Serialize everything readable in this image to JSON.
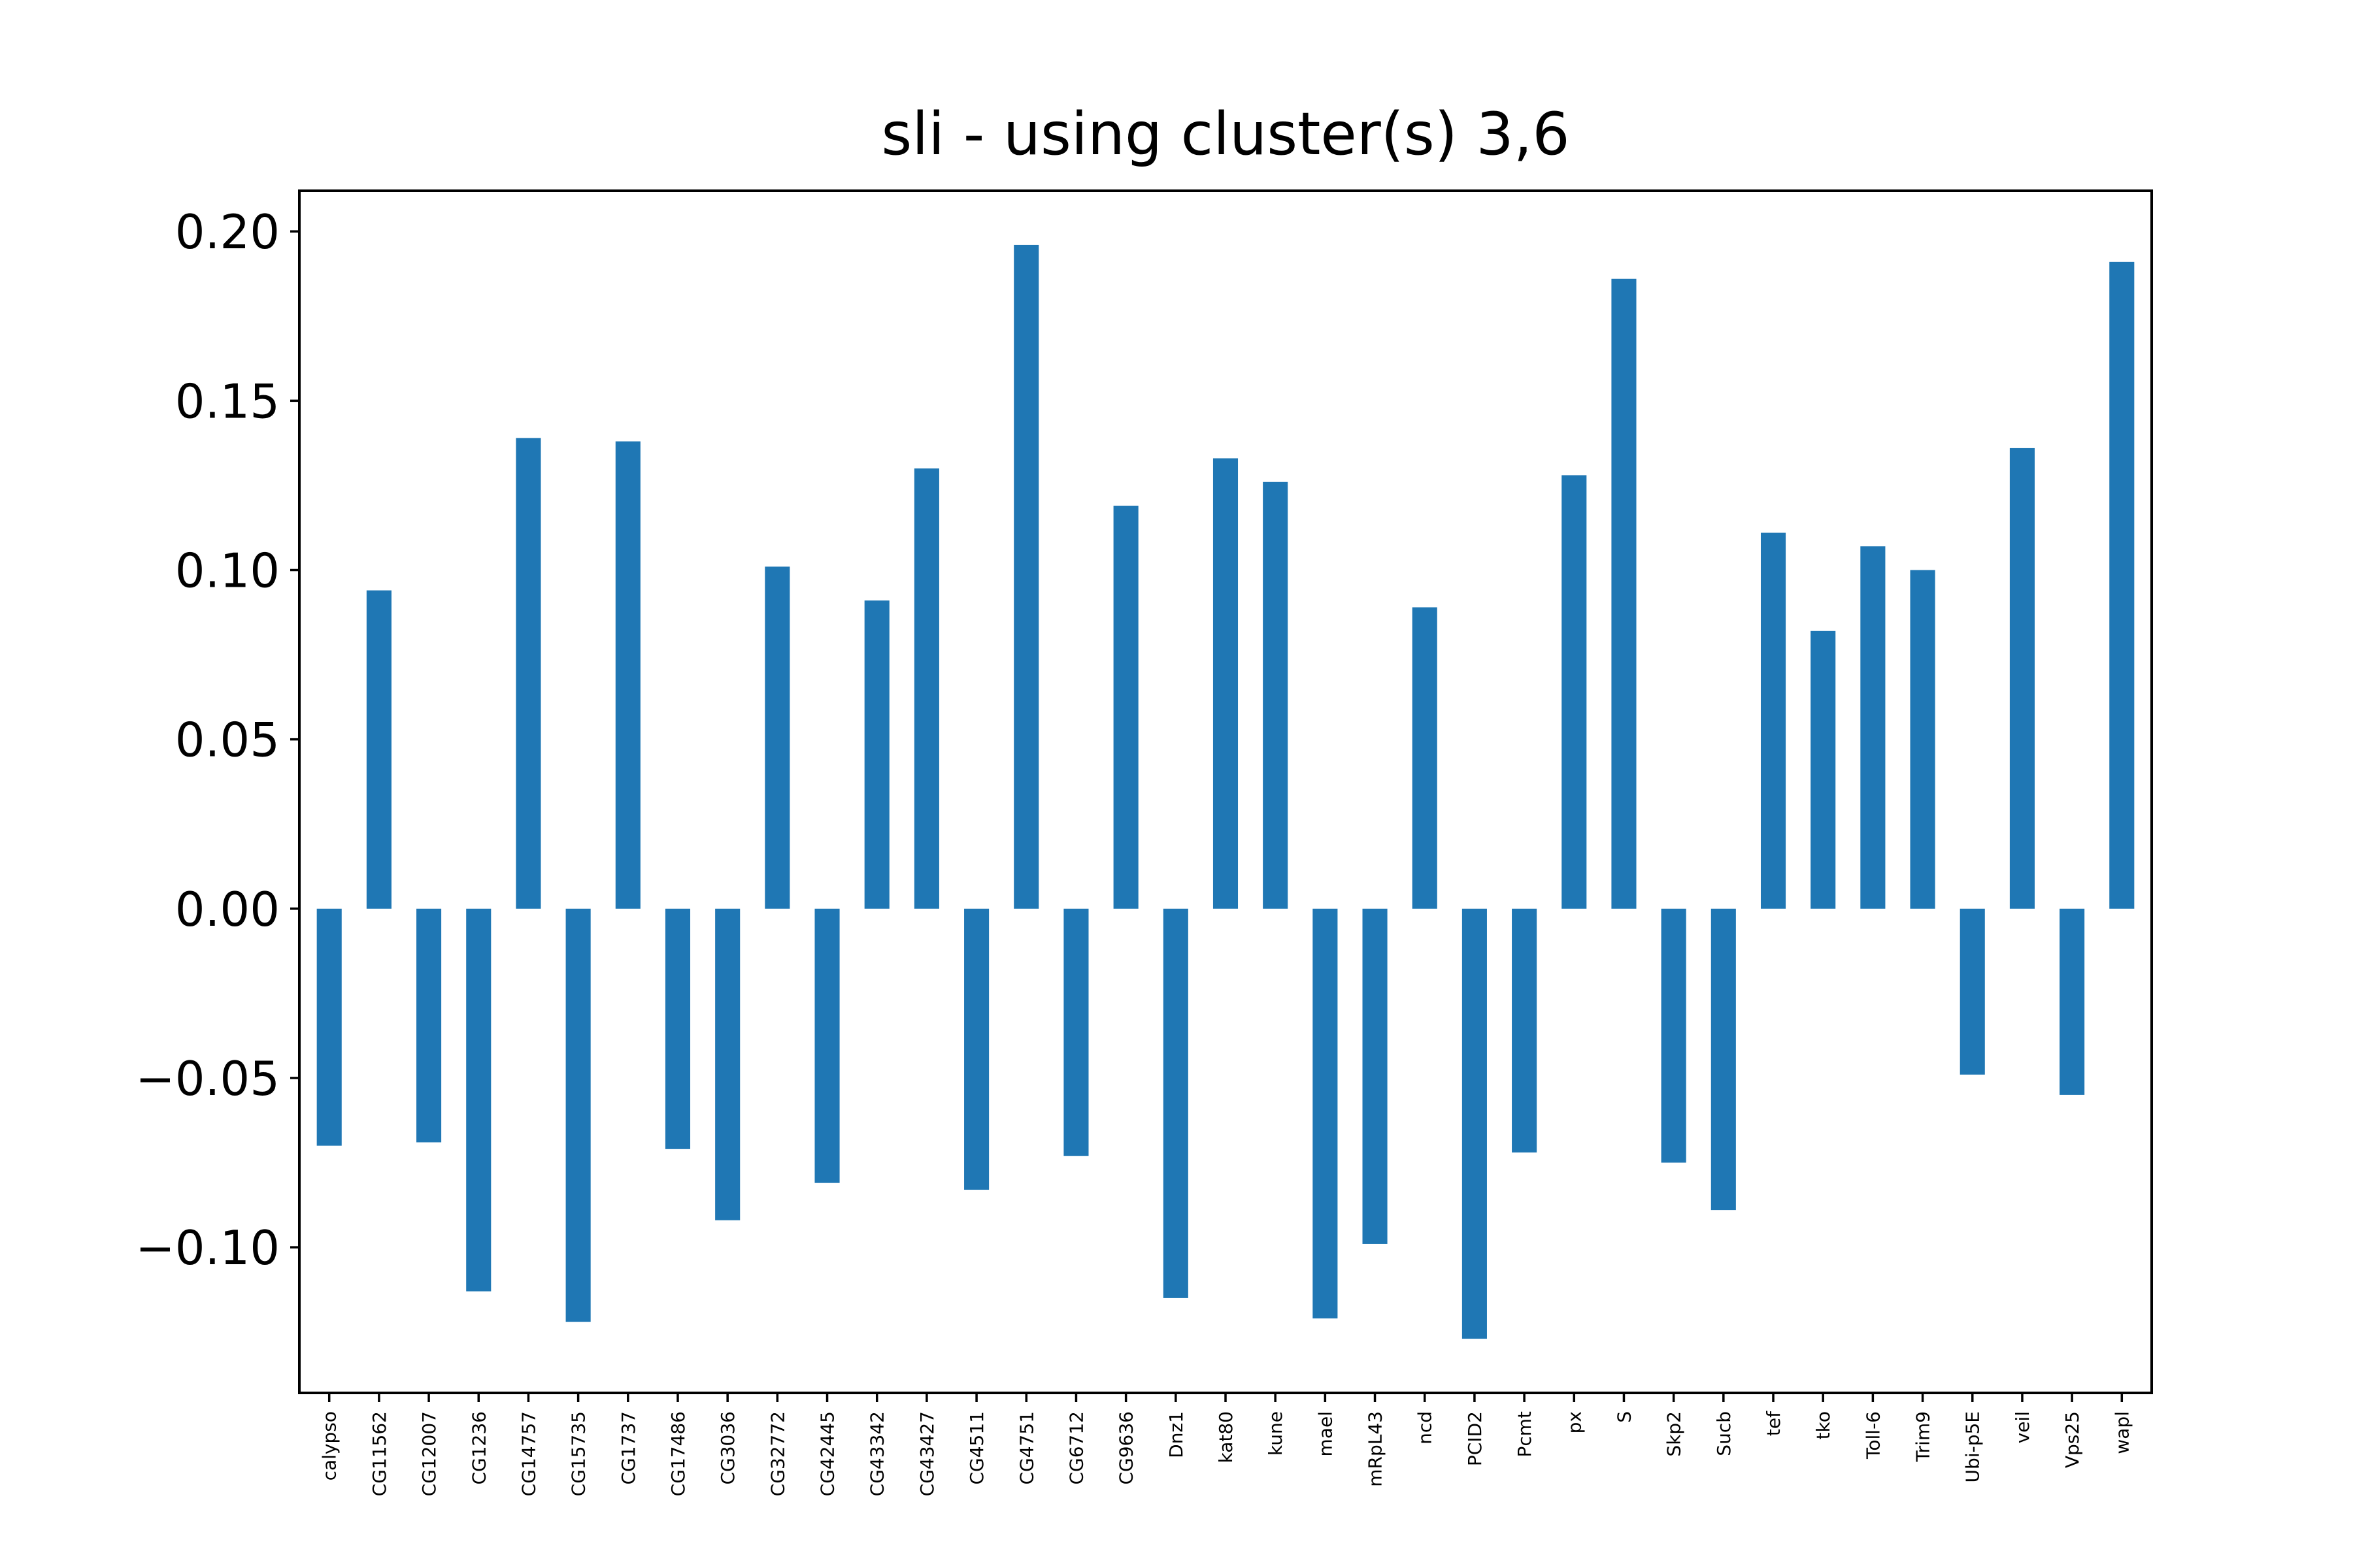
{
  "chart_data": {
    "type": "bar",
    "title": "sli - using cluster(s) 3,6",
    "xlabel": "",
    "ylabel": "",
    "ylim": [
      -0.143,
      0.212
    ],
    "yticks": [
      -0.1,
      -0.05,
      0.0,
      0.05,
      0.1,
      0.15,
      0.2
    ],
    "ytick_labels": [
      "−0.10",
      "−0.05",
      "0.00",
      "0.05",
      "0.10",
      "0.15",
      "0.20"
    ],
    "grid": false,
    "legend": "none",
    "bar_color": "#1f77b4",
    "categories": [
      "calypso",
      "CG11562",
      "CG12007",
      "CG1236",
      "CG14757",
      "CG15735",
      "CG1737",
      "CG17486",
      "CG3036",
      "CG32772",
      "CG42445",
      "CG43342",
      "CG43427",
      "CG4511",
      "CG4751",
      "CG6712",
      "CG9636",
      "Dnz1",
      "kat80",
      "kune",
      "mael",
      "mRpL43",
      "ncd",
      "PCID2",
      "Pcmt",
      "px",
      "S",
      "Skp2",
      "Sucb",
      "tef",
      "tko",
      "Toll-6",
      "Trim9",
      "Ubi-p5E",
      "veil",
      "Vps25",
      "wapl"
    ],
    "values": [
      -0.07,
      0.094,
      -0.069,
      -0.113,
      0.139,
      -0.122,
      0.138,
      -0.071,
      -0.092,
      0.101,
      -0.081,
      0.091,
      0.13,
      -0.083,
      0.196,
      -0.073,
      0.119,
      -0.115,
      0.133,
      0.126,
      -0.121,
      -0.099,
      0.089,
      -0.127,
      -0.072,
      0.128,
      0.186,
      -0.075,
      -0.089,
      0.111,
      0.082,
      0.107,
      0.1,
      -0.049,
      0.136,
      -0.055,
      0.191
    ]
  }
}
